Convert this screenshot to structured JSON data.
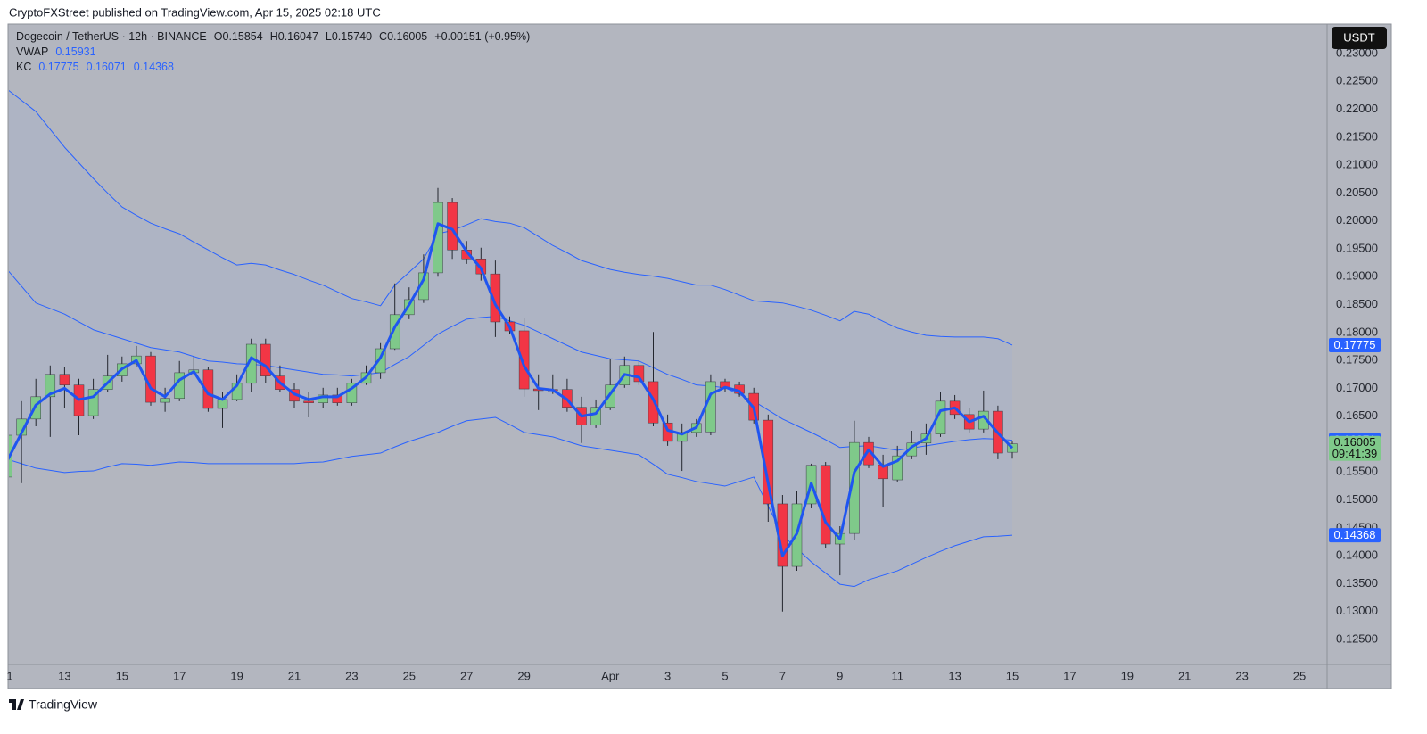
{
  "publisher": "CryptoFXStreet published on TradingView.com, Apr 15, 2025 02:18 UTC",
  "brand": "TradingView",
  "chart_data": {
    "type": "candlestick",
    "title": "Dogecoin / TetherUS · 12h · BINANCE",
    "ohlc_text": [
      "O0.15854",
      "H0.16047",
      "L0.15740",
      "C0.16005",
      "+0.00151 (+0.95%)"
    ],
    "currency": "USDT",
    "countdown": "09:41:39",
    "kc_label": "KC",
    "up_color": "#7fc98a",
    "down_color": "#f23645",
    "wick_color": "#23262e",
    "kc_fill": "#a9b3c8",
    "ylim": [
      0.12053,
      0.23527
    ],
    "yticks": [
      {
        "value": 0.125,
        "label": "0.12500"
      },
      {
        "value": 0.13,
        "label": "0.13000"
      },
      {
        "value": 0.135,
        "label": "0.13500"
      },
      {
        "value": 0.14,
        "label": "0.14000"
      },
      {
        "value": 0.145,
        "label": "0.14500"
      },
      {
        "value": 0.15,
        "label": "0.15000"
      },
      {
        "value": 0.155,
        "label": "0.15500"
      },
      {
        "value": 0.16,
        "label": "0.16000"
      },
      {
        "value": 0.165,
        "label": "0.16500"
      },
      {
        "value": 0.17,
        "label": "0.17000"
      },
      {
        "value": 0.175,
        "label": "0.17500"
      },
      {
        "value": 0.18,
        "label": "0.18000"
      },
      {
        "value": 0.185,
        "label": "0.18500"
      },
      {
        "value": 0.19,
        "label": "0.19000"
      },
      {
        "value": 0.195,
        "label": "0.19500"
      },
      {
        "value": 0.2,
        "label": "0.20000"
      },
      {
        "value": 0.205,
        "label": "0.20500"
      },
      {
        "value": 0.21,
        "label": "0.21000"
      },
      {
        "value": 0.215,
        "label": "0.21500"
      },
      {
        "value": 0.22,
        "label": "0.22000"
      },
      {
        "value": 0.225,
        "label": "0.22500"
      },
      {
        "value": 0.23,
        "label": "0.23000"
      }
    ],
    "grid": false,
    "categories": [
      "1",
      null,
      null,
      null,
      "13",
      null,
      null,
      null,
      "15",
      null,
      null,
      null,
      "17",
      null,
      null,
      null,
      "19",
      null,
      null,
      null,
      "21",
      null,
      null,
      null,
      "23",
      null,
      null,
      null,
      "25",
      null,
      null,
      null,
      "27",
      null,
      null,
      null,
      "29",
      null,
      null,
      null,
      null,
      null,
      "Apr",
      null,
      null,
      null,
      "3",
      null,
      null,
      null,
      "5",
      null,
      null,
      null,
      "7",
      null,
      null,
      null,
      "9",
      null,
      null,
      null,
      "11",
      null,
      null,
      null,
      "13",
      null,
      null,
      null,
      "15",
      null,
      null,
      null,
      "17",
      null,
      null,
      null,
      "19",
      null,
      null,
      null,
      "21",
      null,
      null,
      null,
      "23",
      null,
      null,
      null,
      "25",
      null
    ],
    "open": [
      0.1541,
      0.1616,
      0.1645,
      0.1685,
      0.1725,
      0.1706,
      0.1651,
      0.1698,
      0.1722,
      0.1744,
      0.1758,
      0.1675,
      0.1682,
      0.1728,
      0.1733,
      0.1664,
      0.168,
      0.1709,
      0.1779,
      0.1722,
      0.1698,
      0.1677,
      0.1674,
      0.1688,
      0.1674,
      0.1709,
      0.1728,
      0.1771,
      0.1832,
      0.1859,
      0.1907,
      0.2033,
      0.1948,
      0.1932,
      0.1905,
      0.1819,
      0.1803,
      0.1699,
      0.1698,
      0.1698,
      0.1666,
      0.1634,
      0.1666,
      0.1706,
      0.1741,
      0.1712,
      0.1638,
      0.1605,
      0.1621,
      0.1622,
      0.1712,
      0.1706,
      0.1691,
      0.1643,
      0.1493,
      0.1381,
      0.1493,
      0.1562,
      0.1421,
      0.144,
      0.1603,
      0.1563,
      0.1536,
      0.1579,
      0.1602,
      0.1618,
      0.1677,
      0.1653,
      0.1627,
      0.1659,
      0.15854,
      null,
      null,
      null,
      null,
      null,
      null,
      null,
      null,
      null,
      null,
      null,
      null,
      null,
      null,
      null,
      null,
      null,
      null,
      null,
      null,
      null
    ],
    "high": [
      0.1629,
      0.1677,
      0.1717,
      0.1741,
      0.1738,
      0.1717,
      0.1717,
      0.176,
      0.1757,
      0.1776,
      0.1765,
      0.1701,
      0.1749,
      0.1757,
      0.1738,
      0.1693,
      0.1725,
      0.1789,
      0.1789,
      0.1741,
      0.1709,
      0.1693,
      0.1701,
      0.1701,
      0.1717,
      0.1741,
      0.1781,
      0.1888,
      0.1881,
      0.194,
      0.2059,
      0.2041,
      0.1964,
      0.1952,
      0.1929,
      0.1829,
      0.1827,
      0.1725,
      0.1725,
      0.1717,
      0.1685,
      0.168,
      0.1752,
      0.1757,
      0.1749,
      0.1801,
      0.1653,
      0.1637,
      0.1645,
      0.1725,
      0.1717,
      0.1712,
      0.1701,
      0.1653,
      0.1509,
      0.1517,
      0.1565,
      0.1568,
      0.1453,
      0.1642,
      0.1613,
      0.1581,
      0.1597,
      0.1624,
      0.1637,
      0.1693,
      0.1688,
      0.1664,
      0.1696,
      0.1669,
      0.16047,
      null,
      null,
      null,
      null,
      null,
      null,
      null,
      null,
      null,
      null,
      null,
      null,
      null,
      null,
      null,
      null,
      null,
      null,
      null,
      null,
      null
    ],
    "low": [
      0.1533,
      0.153,
      0.1632,
      0.1613,
      0.1664,
      0.1616,
      0.1645,
      0.1693,
      0.1712,
      0.1738,
      0.1669,
      0.1658,
      0.1677,
      0.1725,
      0.1658,
      0.1629,
      0.1677,
      0.1693,
      0.1709,
      0.1693,
      0.1664,
      0.1648,
      0.1664,
      0.1669,
      0.1669,
      0.1706,
      0.1717,
      0.1769,
      0.1824,
      0.1853,
      0.19,
      0.1932,
      0.1923,
      0.1893,
      0.1792,
      0.1797,
      0.1685,
      0.1661,
      0.169,
      0.1658,
      0.1602,
      0.1629,
      0.1661,
      0.1701,
      0.1706,
      0.1632,
      0.1597,
      0.1552,
      0.1613,
      0.1616,
      0.1693,
      0.1685,
      0.1637,
      0.1461,
      0.13,
      0.1373,
      0.1485,
      0.1413,
      0.1365,
      0.1429,
      0.1557,
      0.1488,
      0.1533,
      0.1573,
      0.1581,
      0.1613,
      0.1645,
      0.1621,
      0.1621,
      0.1573,
      0.1574,
      null,
      null,
      null,
      null,
      null,
      null,
      null,
      null,
      null,
      null,
      null,
      null,
      null,
      null,
      null,
      null,
      null,
      null,
      null,
      null,
      null
    ],
    "close": [
      0.1616,
      0.1645,
      0.1685,
      0.1725,
      0.1706,
      0.1651,
      0.1698,
      0.1722,
      0.1744,
      0.1758,
      0.1675,
      0.1682,
      0.1728,
      0.1733,
      0.1664,
      0.168,
      0.1709,
      0.1779,
      0.1722,
      0.1698,
      0.1677,
      0.1674,
      0.1688,
      0.1674,
      0.1709,
      0.1728,
      0.1771,
      0.1832,
      0.1859,
      0.1907,
      0.2033,
      0.1948,
      0.1932,
      0.1905,
      0.1819,
      0.1803,
      0.1699,
      0.1696,
      0.1696,
      0.1666,
      0.1634,
      0.1666,
      0.1706,
      0.1741,
      0.1712,
      0.1638,
      0.1605,
      0.1621,
      0.1637,
      0.1712,
      0.1701,
      0.1691,
      0.1643,
      0.1493,
      0.1381,
      0.1493,
      0.1562,
      0.1421,
      0.144,
      0.1603,
      0.1563,
      0.1538,
      0.1579,
      0.1602,
      0.1618,
      0.1677,
      0.1653,
      0.1627,
      0.1659,
      0.1584,
      0.16005,
      null,
      null,
      null,
      null,
      null,
      null,
      null,
      null,
      null,
      null,
      null,
      null,
      null,
      null,
      null,
      null,
      null,
      null,
      null,
      null,
      null
    ],
    "series": [
      {
        "name": "VWAP",
        "color": "#1f55f0",
        "width": 3,
        "values": [
          0.157,
          0.162,
          0.167,
          0.169,
          0.17,
          0.168,
          0.1685,
          0.171,
          0.1735,
          0.175,
          0.17,
          0.1685,
          0.1715,
          0.173,
          0.169,
          0.168,
          0.1705,
          0.1755,
          0.174,
          0.171,
          0.169,
          0.168,
          0.1685,
          0.1685,
          0.17,
          0.172,
          0.1755,
          0.181,
          0.185,
          0.1895,
          0.1995,
          0.1985,
          0.1945,
          0.1915,
          0.185,
          0.181,
          0.174,
          0.17,
          0.1697,
          0.168,
          0.165,
          0.1655,
          0.169,
          0.1725,
          0.172,
          0.168,
          0.1625,
          0.1618,
          0.163,
          0.169,
          0.1702,
          0.1695,
          0.1665,
          0.153,
          0.14,
          0.144,
          0.153,
          0.146,
          0.143,
          0.155,
          0.159,
          0.156,
          0.157,
          0.1595,
          0.161,
          0.166,
          0.1665,
          0.164,
          0.165,
          0.162,
          0.15931,
          null,
          null,
          null,
          null,
          null,
          null,
          null,
          null,
          null,
          null,
          null,
          null,
          null,
          null,
          null,
          null,
          null,
          null,
          null,
          null,
          null
        ]
      },
      {
        "color": "#2962ff",
        "width": 1,
        "values": [
          0.2236,
          0.2216,
          0.2196,
          0.2164,
          0.2132,
          0.2104,
          0.2076,
          0.205,
          0.2025,
          0.201,
          0.1996,
          0.1986,
          0.1977,
          0.1962,
          0.1948,
          0.1934,
          0.1921,
          0.1924,
          0.1921,
          0.1912,
          0.1904,
          0.1894,
          0.1885,
          0.1873,
          0.1861,
          0.1855,
          0.1848,
          0.1885,
          0.1908,
          0.1932,
          0.1977,
          0.1983,
          0.1993,
          0.2004,
          0.1999,
          0.1996,
          0.1988,
          0.1972,
          0.1956,
          0.1943,
          0.1929,
          0.1921,
          0.1913,
          0.1908,
          0.1904,
          0.1901,
          0.1897,
          0.1891,
          0.1885,
          0.1885,
          0.1877,
          0.1867,
          0.1857,
          0.1855,
          0.1853,
          0.1847,
          0.184,
          0.1831,
          0.1821,
          0.1838,
          0.1833,
          0.182,
          0.1808,
          0.1801,
          0.1795,
          0.1793,
          0.1792,
          0.1792,
          0.1792,
          0.1789,
          0.17775,
          null,
          null,
          null,
          null,
          null,
          null,
          null,
          null,
          null,
          null,
          null,
          null,
          null,
          null,
          null,
          null,
          null,
          null,
          null,
          null,
          null
        ]
      },
      {
        "color": "#2962ff",
        "width": 1,
        "values": [
          0.1913,
          0.1883,
          0.1853,
          0.1843,
          0.1833,
          0.1819,
          0.1805,
          0.1797,
          0.1789,
          0.1781,
          0.1773,
          0.1769,
          0.1765,
          0.1757,
          0.1749,
          0.1747,
          0.1744,
          0.1743,
          0.1741,
          0.1737,
          0.1733,
          0.1729,
          0.1725,
          0.1724,
          0.1722,
          0.1725,
          0.1728,
          0.1743,
          0.1757,
          0.1777,
          0.1797,
          0.1811,
          0.1824,
          0.1827,
          0.1829,
          0.1821,
          0.1813,
          0.1801,
          0.1789,
          0.1777,
          0.1765,
          0.1759,
          0.1753,
          0.1751,
          0.1749,
          0.1737,
          0.1725,
          0.1716,
          0.1706,
          0.1704,
          0.1701,
          0.1689,
          0.1677,
          0.1661,
          0.1645,
          0.1633,
          0.1621,
          0.1608,
          0.1594,
          0.1596,
          0.1597,
          0.1593,
          0.1589,
          0.1593,
          0.1597,
          0.1601,
          0.1605,
          0.1608,
          0.161,
          0.1609,
          0.16071,
          null,
          null,
          null,
          null,
          null,
          null,
          null,
          null,
          null,
          null,
          null,
          null,
          null,
          null,
          null,
          null,
          null,
          null,
          null,
          null,
          null
        ]
      },
      {
        "color": "#2962ff",
        "width": 1,
        "values": [
          0.1573,
          0.1565,
          0.1557,
          0.1553,
          0.1549,
          0.1551,
          0.1552,
          0.1559,
          0.1565,
          0.1564,
          0.1562,
          0.1565,
          0.1568,
          0.1567,
          0.1565,
          0.1565,
          0.1565,
          0.1565,
          0.1565,
          0.1565,
          0.1565,
          0.1567,
          0.1568,
          0.1573,
          0.1578,
          0.1581,
          0.1584,
          0.1595,
          0.1605,
          0.1613,
          0.1621,
          0.1632,
          0.1642,
          0.1645,
          0.1648,
          0.1635,
          0.1621,
          0.1617,
          0.1613,
          0.1605,
          0.1597,
          0.1593,
          0.1589,
          0.1585,
          0.1581,
          0.1564,
          0.1546,
          0.154,
          0.1533,
          0.1529,
          0.1525,
          0.1533,
          0.1541,
          0.1489,
          0.1437,
          0.1413,
          0.1389,
          0.1369,
          0.1349,
          0.1345,
          0.1357,
          0.1365,
          0.1373,
          0.1385,
          0.1397,
          0.1408,
          0.1418,
          0.1426,
          0.1434,
          0.1435,
          0.14368,
          null,
          null,
          null,
          null,
          null,
          null,
          null,
          null,
          null,
          null,
          null,
          null,
          null,
          null,
          null,
          null,
          null,
          null,
          null,
          null,
          null
        ]
      }
    ]
  }
}
